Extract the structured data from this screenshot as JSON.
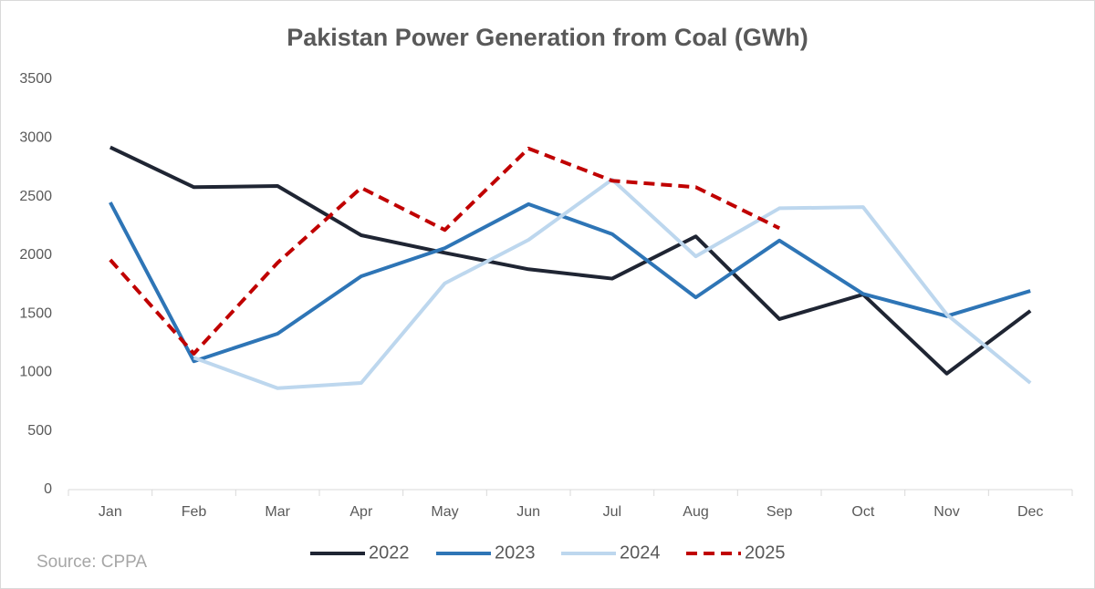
{
  "chart_data": {
    "type": "line",
    "title": "Pakistan Power Generation from Coal (GWh)",
    "source": "Source: CPPA",
    "categories": [
      "Jan",
      "Feb",
      "Mar",
      "Apr",
      "May",
      "Jun",
      "Jul",
      "Aug",
      "Sep",
      "Oct",
      "Nov",
      "Dec"
    ],
    "series": [
      {
        "name": "2022",
        "color": "#1f2533",
        "dash": false,
        "values": [
          2920,
          2580,
          2590,
          2170,
          2020,
          1880,
          1800,
          2160,
          1455,
          1665,
          990,
          1525
        ]
      },
      {
        "name": "2023",
        "color": "#2e75b6",
        "dash": false,
        "values": [
          2450,
          1095,
          1330,
          1820,
          2060,
          2435,
          2180,
          1640,
          2125,
          1670,
          1480,
          1695
        ]
      },
      {
        "name": "2024",
        "color": "#bdd7ee",
        "dash": false,
        "values": [
          null,
          1125,
          865,
          910,
          1760,
          2130,
          2645,
          1990,
          2400,
          2410,
          1495,
          910
        ]
      },
      {
        "name": "2025",
        "color": "#c00000",
        "dash": true,
        "values": [
          1960,
          1160,
          1935,
          2575,
          2215,
          2910,
          2635,
          2580,
          2230,
          null,
          null,
          null
        ]
      }
    ],
    "ylim": [
      0,
      3500
    ],
    "yticks": [
      0,
      500,
      1000,
      1500,
      2000,
      2500,
      3000,
      3500
    ],
    "grid": false,
    "legend": "bottom"
  }
}
